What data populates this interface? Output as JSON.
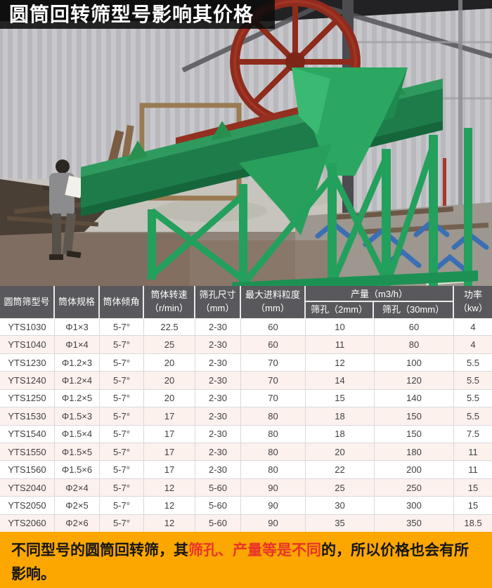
{
  "title": "圆筒回转筛型号影响其价格",
  "colors": {
    "title_bar_bg": "#0c0c0c",
    "table_header_bg": "#59595d",
    "row_alt_bg": "#fdf1ee",
    "footer_bg": "#fba700",
    "footer_highlight": "#e8352a",
    "machine_green": "#1e7c4a",
    "wheel_red": "#8e2b1d"
  },
  "photo": {
    "subject": "车间内的绿色圆筒回转筛设备照片"
  },
  "table": {
    "header": {
      "model": "圆筒筛型号",
      "spec": "筒体规格",
      "incline": "筒体倾角",
      "speed1": "筒体转速",
      "speed2": "（r/min）",
      "hole1": "筛孔尺寸",
      "hole2": "（mm）",
      "feed1": "最大进料粒度",
      "feed2": "（mm）",
      "output_group": "产量（m3/h）",
      "output_2mm": "筛孔（2mm）",
      "output_30mm": "筛孔（30mm）",
      "power1": "功率",
      "power2": "（kw）"
    },
    "rows": [
      [
        "YTS1030",
        "Φ1×3",
        "5-7°",
        "22.5",
        "2-30",
        "60",
        "10",
        "60",
        "4"
      ],
      [
        "YTS1040",
        "Φ1×4",
        "5-7°",
        "25",
        "2-30",
        "60",
        "11",
        "80",
        "4"
      ],
      [
        "YTS1230",
        "Φ1.2×3",
        "5-7°",
        "20",
        "2-30",
        "70",
        "12",
        "100",
        "5.5"
      ],
      [
        "YTS1240",
        "Φ1.2×4",
        "5-7°",
        "20",
        "2-30",
        "70",
        "14",
        "120",
        "5.5"
      ],
      [
        "YTS1250",
        "Φ1.2×5",
        "5-7°",
        "20",
        "2-30",
        "70",
        "15",
        "140",
        "5.5"
      ],
      [
        "YTS1530",
        "Φ1.5×3",
        "5-7°",
        "17",
        "2-30",
        "80",
        "18",
        "150",
        "5.5"
      ],
      [
        "YTS1540",
        "Φ1.5×4",
        "5-7°",
        "17",
        "2-30",
        "80",
        "18",
        "150",
        "7.5"
      ],
      [
        "YTS1550",
        "Φ1.5×5",
        "5-7°",
        "17",
        "2-30",
        "80",
        "20",
        "180",
        "11"
      ],
      [
        "YTS1560",
        "Φ1.5×6",
        "5-7°",
        "17",
        "2-30",
        "80",
        "22",
        "200",
        "11"
      ],
      [
        "YTS2040",
        "Φ2×4",
        "5-7°",
        "12",
        "5-60",
        "90",
        "25",
        "250",
        "15"
      ],
      [
        "YTS2050",
        "Φ2×5",
        "5-7°",
        "12",
        "5-60",
        "90",
        "30",
        "300",
        "15"
      ],
      [
        "YTS2060",
        "Φ2×6",
        "5-7°",
        "12",
        "5-60",
        "90",
        "35",
        "350",
        "18.5"
      ]
    ]
  },
  "footer": {
    "text_before": "不同型号的圆筒回转筛，其",
    "text_highlight": "筛孔、产量等是不同",
    "text_after": "的，所以价格也会有所影响。"
  }
}
